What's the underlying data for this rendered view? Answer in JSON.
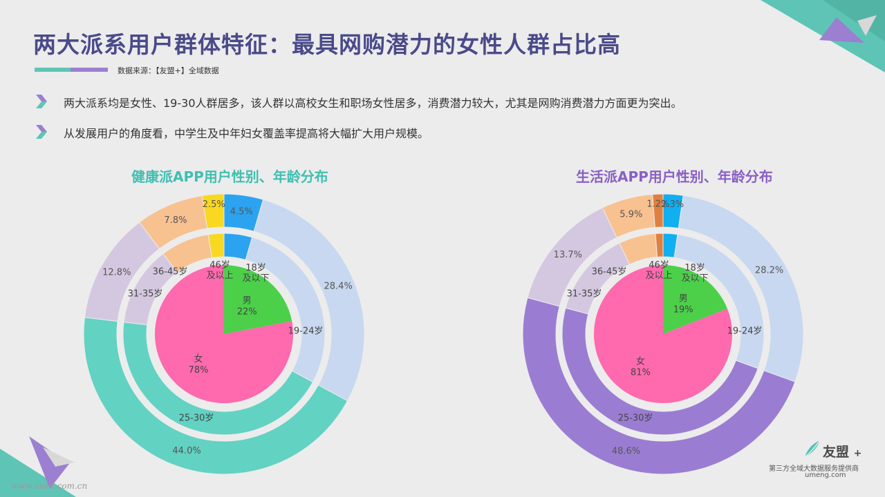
{
  "title": "两大派系用户群体特征：最具网购潜力的女性人群占比高",
  "source": "数据来源：【友盟+】全域数据",
  "bullets": [
    "两大派系均是女性、19-30人群居多，该人群以高校女生和职场女性居多，消费潜力较大，尤其是网购消费潜力方面更为突出。",
    "从发展用户的角度看，中学生及中年妇女覆盖率提高将大幅扩大用户规模。"
  ],
  "chart_data": [
    {
      "type": "pie",
      "title": "健康派APP用户性别、年龄分布",
      "gender": [
        {
          "label": "男",
          "value": 22,
          "value_label": "22%",
          "color": "#4cd04a"
        },
        {
          "label": "女",
          "value": 78,
          "value_label": "78%",
          "color": "#ff69ae"
        }
      ],
      "age_inner_labels": [
        "18岁及以下",
        "19-24岁",
        "25-30岁",
        "31-35岁",
        "36-45岁",
        "46岁及以上"
      ],
      "age": [
        {
          "label": "18岁及以下",
          "value": 4.5,
          "value_label": "4.5%",
          "color": "#2ca3f0"
        },
        {
          "label": "19-24岁",
          "value": 28.4,
          "value_label": "28.4%",
          "color": "#c8d8f0"
        },
        {
          "label": "25-30岁",
          "value": 44.0,
          "value_label": "44.0%",
          "color": "#62d2c3"
        },
        {
          "label": "31-35岁",
          "value": 12.8,
          "value_label": "12.8%",
          "color": "#d4c8e0"
        },
        {
          "label": "36-45岁",
          "value": 7.8,
          "value_label": "7.8%",
          "color": "#f8c190"
        },
        {
          "label": "46岁及以上",
          "value": 2.5,
          "value_label": "2.5%",
          "color": "#f8d820"
        }
      ]
    },
    {
      "type": "pie",
      "title": "生活派APP用户性别、年龄分布",
      "gender": [
        {
          "label": "男",
          "value": 19,
          "value_label": "19%",
          "color": "#4cd04a"
        },
        {
          "label": "女",
          "value": 81,
          "value_label": "81%",
          "color": "#ff69ae"
        }
      ],
      "age_inner_labels": [
        "18岁及以下",
        "19-24岁",
        "25-30岁",
        "31-35岁",
        "36-45岁",
        "46岁及以上"
      ],
      "age": [
        {
          "label": "18岁及以下",
          "value": 2.3,
          "value_label": "2.3%",
          "color": "#10b0f0"
        },
        {
          "label": "19-24岁",
          "value": 28.2,
          "value_label": "28.2%",
          "color": "#c8d8f0"
        },
        {
          "label": "25-30岁",
          "value": 48.6,
          "value_label": "48.6%",
          "color": "#9a7dd2"
        },
        {
          "label": "31-35岁",
          "value": 13.7,
          "value_label": "13.7%",
          "color": "#d4c8e0"
        },
        {
          "label": "36-45岁",
          "value": 5.9,
          "value_label": "5.9%",
          "color": "#f8c190"
        },
        {
          "label": "46岁及以上",
          "value": 1.2,
          "value_label": "1.2%",
          "color": "#e08040"
        }
      ]
    }
  ],
  "logo": {
    "brand": "友盟",
    "plus": "+",
    "tagline": "第三方全域大数据服务提供商",
    "url": "umeng.com"
  },
  "watermark": "www.useit.com.cn"
}
